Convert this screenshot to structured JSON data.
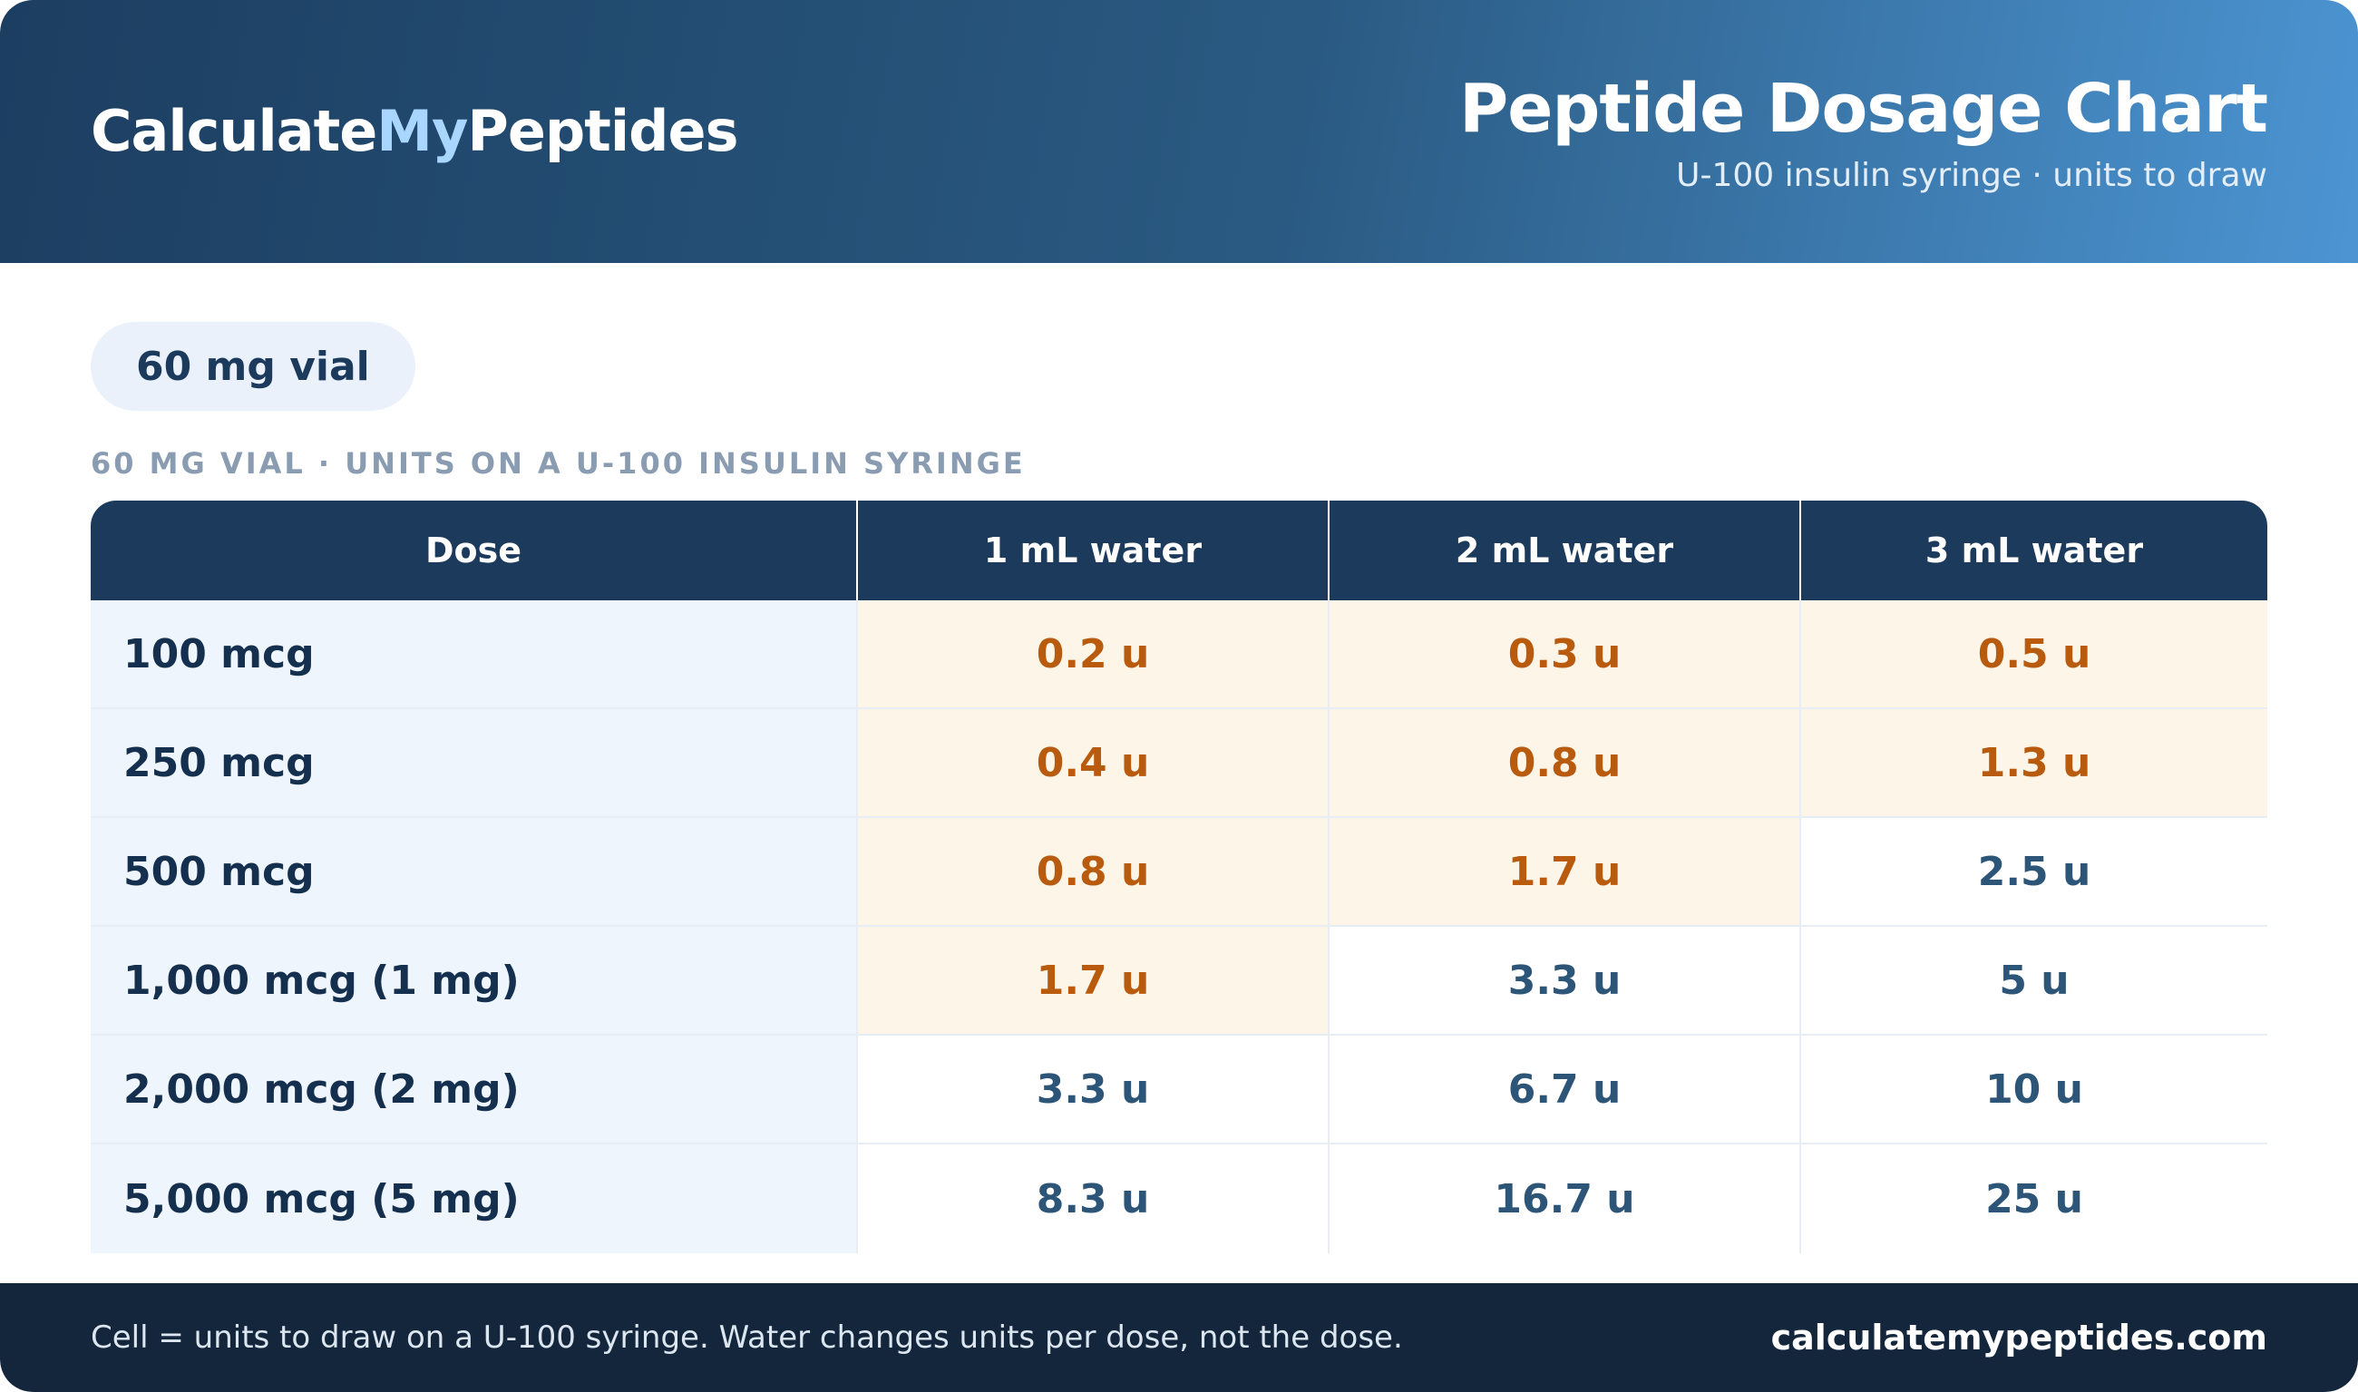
{
  "header": {
    "brand_part1": "Calculate",
    "brand_part2": "My",
    "brand_part3": "Peptides",
    "title": "Peptide Dosage Chart",
    "subtitle": "U-100 insulin syringe · units to draw"
  },
  "chip": "60 mg vial",
  "caption": "60 MG VIAL · UNITS ON A U-100 INSULIN SYRINGE",
  "colors": {
    "header_start": "#1c3e61",
    "header_end": "#4c95d3",
    "table_header": "#1b3a5c",
    "highlight_bg": "#fdf5e8",
    "highlight_text": "#b85b0e",
    "normal_text": "#2c5578",
    "footer_bg": "#13263b"
  },
  "chart_data": {
    "type": "table",
    "columns": [
      "Dose",
      "1 mL water",
      "2 mL water",
      "3 mL water"
    ],
    "rows": [
      {
        "dose": "100 mcg",
        "cells": [
          {
            "text": "0.2 u",
            "highlight": true
          },
          {
            "text": "0.3 u",
            "highlight": true
          },
          {
            "text": "0.5 u",
            "highlight": true
          }
        ]
      },
      {
        "dose": "250 mcg",
        "cells": [
          {
            "text": "0.4 u",
            "highlight": true
          },
          {
            "text": "0.8 u",
            "highlight": true
          },
          {
            "text": "1.3 u",
            "highlight": true
          }
        ]
      },
      {
        "dose": "500 mcg",
        "cells": [
          {
            "text": "0.8 u",
            "highlight": true
          },
          {
            "text": "1.7 u",
            "highlight": true
          },
          {
            "text": "2.5 u",
            "highlight": false
          }
        ]
      },
      {
        "dose": "1,000 mcg (1 mg)",
        "cells": [
          {
            "text": "1.7 u",
            "highlight": true
          },
          {
            "text": "3.3 u",
            "highlight": false
          },
          {
            "text": "5 u",
            "highlight": false
          }
        ]
      },
      {
        "dose": "2,000 mcg (2 mg)",
        "cells": [
          {
            "text": "3.3 u",
            "highlight": false
          },
          {
            "text": "6.7 u",
            "highlight": false
          },
          {
            "text": "10 u",
            "highlight": false
          }
        ]
      },
      {
        "dose": "5,000 mcg (5 mg)",
        "cells": [
          {
            "text": "8.3 u",
            "highlight": false
          },
          {
            "text": "16.7 u",
            "highlight": false
          },
          {
            "text": "25 u",
            "highlight": false
          }
        ]
      }
    ]
  },
  "footer": {
    "note": "Cell = units to draw on a U-100 syringe. Water changes units per dose, not the dose.",
    "site": "calculatemypeptides.com"
  }
}
